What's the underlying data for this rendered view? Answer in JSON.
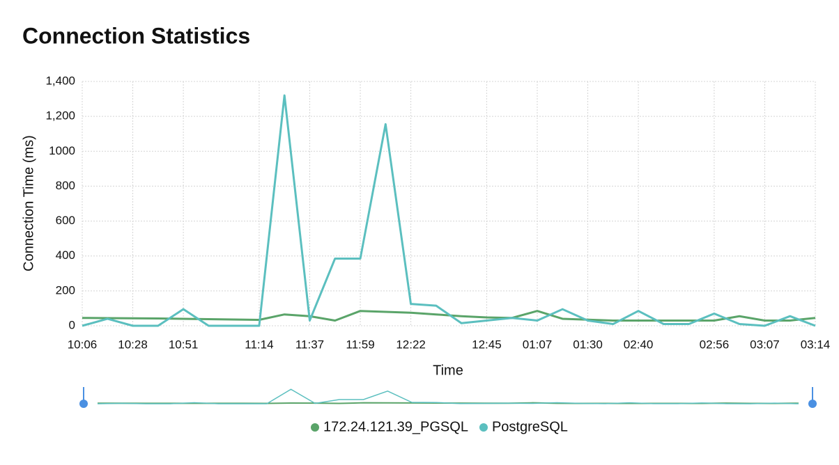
{
  "chart_data": {
    "type": "line",
    "title": "Connection Statistics",
    "x_label": "Time",
    "y_label": "Connection Time (ms)",
    "categories": [
      "10:06",
      null,
      "10:28",
      null,
      "10:51",
      null,
      null,
      "11:14",
      null,
      "11:37",
      null,
      "11:59",
      null,
      "12:22",
      null,
      null,
      "12:45",
      null,
      "01:07",
      null,
      "01:30",
      null,
      "02:40",
      null,
      null,
      "02:56",
      null,
      "03:07",
      null,
      "03:14"
    ],
    "series": [
      {
        "name": "172.24.121.39_PGSQL",
        "color": "#5aa469",
        "values": [
          45,
          44,
          43,
          42,
          40,
          38,
          36,
          34,
          65,
          55,
          30,
          85,
          80,
          75,
          65,
          55,
          48,
          45,
          85,
          40,
          35,
          30,
          30,
          30,
          30,
          30,
          55,
          30,
          30,
          45
        ]
      },
      {
        "name": "PostgreSQL",
        "color": "#5bbfbf",
        "values": [
          0,
          40,
          0,
          0,
          95,
          0,
          0,
          0,
          1320,
          30,
          385,
          385,
          1155,
          125,
          115,
          15,
          30,
          45,
          30,
          95,
          30,
          10,
          85,
          10,
          10,
          70,
          10,
          0,
          55,
          0
        ]
      }
    ],
    "ylim": [
      0,
      1400
    ],
    "yticks": [
      0,
      200,
      400,
      600,
      800,
      1000,
      {
        "value": 1200,
        "label": "1,200"
      },
      {
        "value": 1400,
        "label": "1,400"
      }
    ],
    "grid": true,
    "legend": "bottom"
  }
}
